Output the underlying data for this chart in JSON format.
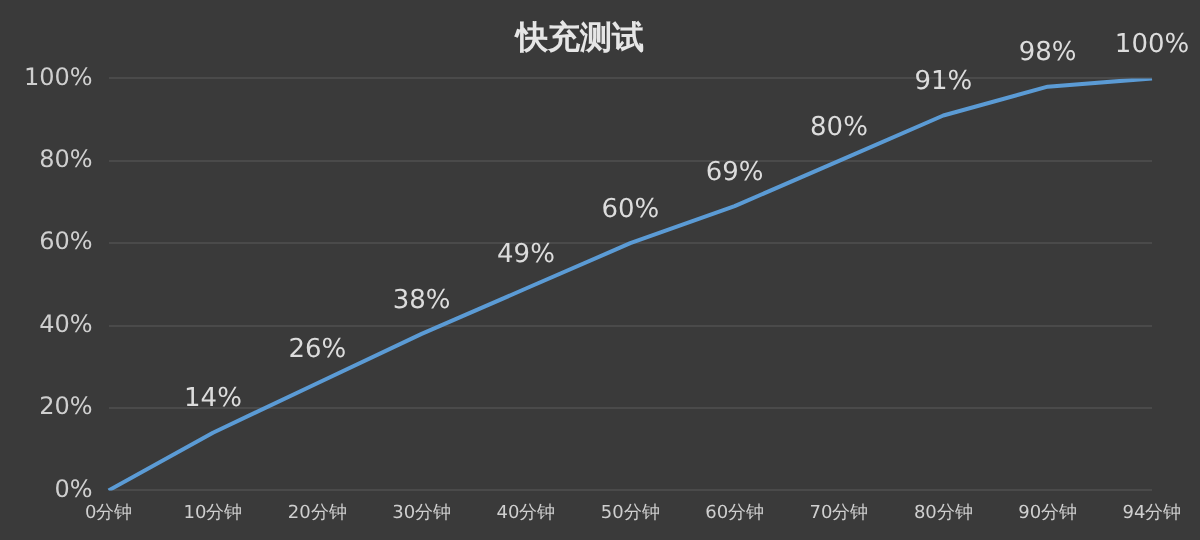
{
  "chart_data": {
    "type": "line",
    "title": "快充测试",
    "categories": [
      "0分钟",
      "10分钟",
      "20分钟",
      "30分钟",
      "40分钟",
      "50分钟",
      "60分钟",
      "70分钟",
      "80分钟",
      "90分钟",
      "94分钟"
    ],
    "series": [
      {
        "color": "#5b9bd5",
        "values": [
          0,
          14,
          26,
          38,
          49,
          60,
          69,
          80,
          91,
          98,
          100
        ],
        "value_labels": [
          null,
          "14%",
          "26%",
          "38%",
          "49%",
          "60%",
          "69%",
          "80%",
          "91%",
          "98%",
          "100%"
        ]
      }
    ],
    "ylim": [
      0,
      100
    ],
    "yticks": [
      {
        "value": 0,
        "label": "0%"
      },
      {
        "value": 20,
        "label": "20%"
      },
      {
        "value": 40,
        "label": "40%"
      },
      {
        "value": 60,
        "label": "60%"
      },
      {
        "value": 80,
        "label": "80%"
      },
      {
        "value": 100,
        "label": "100%"
      }
    ],
    "grid": "y",
    "legend": false,
    "marker": "none",
    "line_style": "solid"
  }
}
